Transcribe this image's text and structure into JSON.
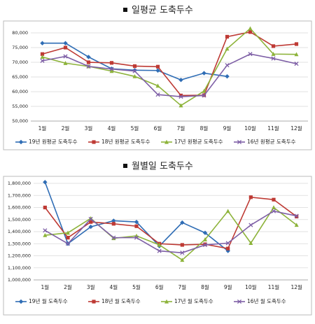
{
  "chart_data": [
    {
      "type": "line",
      "title": "일평균 도축두수",
      "categories": [
        "1월",
        "2월",
        "3월",
        "4월",
        "5월",
        "6월",
        "7월",
        "8월",
        "9월",
        "10월",
        "11월",
        "12월"
      ],
      "series": [
        {
          "name": "19년 원평균 도축두수",
          "color": "#2f6db5",
          "marker": "diamond",
          "values": [
            76500,
            76500,
            71800,
            67800,
            67300,
            67200,
            64000,
            66300,
            65200,
            null,
            null,
            null
          ]
        },
        {
          "name": "18년 원평균 도축두수",
          "color": "#be3a34",
          "marker": "square",
          "values": [
            72800,
            75000,
            70000,
            69800,
            68700,
            68500,
            58700,
            58800,
            78700,
            80300,
            75500,
            76200
          ]
        },
        {
          "name": "17년 원평균 도축두수",
          "color": "#8db33a",
          "marker": "triangle",
          "values": [
            71800,
            69700,
            68600,
            67000,
            65200,
            62000,
            55300,
            60200,
            74600,
            81500,
            72800,
            72700
          ]
        },
        {
          "name": "16년 원평균 도축두수",
          "color": "#7e5fa6",
          "marker": "x",
          "values": [
            70500,
            72000,
            68600,
            67700,
            67000,
            59000,
            58300,
            58700,
            69000,
            72800,
            71300,
            69500
          ]
        }
      ],
      "ylim": [
        50000,
        80000
      ],
      "yticks": [
        {
          "value": 50000,
          "label": "50,000"
        },
        {
          "value": 55000,
          "label": "55,000"
        },
        {
          "value": 60000,
          "label": "60,000"
        },
        {
          "value": 65000,
          "label": "65,000"
        },
        {
          "value": 70000,
          "label": "70,000"
        },
        {
          "value": 75000,
          "label": "75,000"
        },
        {
          "value": 80000,
          "label": "80,000"
        }
      ],
      "grid": true,
      "legend": "bottom"
    },
    {
      "type": "line",
      "title": "월별일 도축두수",
      "categories": [
        "1월",
        "2월",
        "3월",
        "4월",
        "5월",
        "6월",
        "7월",
        "8월",
        "9월",
        "10월",
        "11월",
        "12월"
      ],
      "series": [
        {
          "name": "19년 월 도축두수",
          "color": "#2f6db5",
          "marker": "diamond",
          "values": [
            1810000,
            1300000,
            1440000,
            1490000,
            1480000,
            1280000,
            1475000,
            1390000,
            1240000,
            null,
            null,
            null
          ]
        },
        {
          "name": "18년 월 도축두수",
          "color": "#be3a34",
          "marker": "square",
          "values": [
            1600000,
            1350000,
            1480000,
            1465000,
            1445000,
            1300000,
            1290000,
            1295000,
            1260000,
            1685000,
            1665000,
            1525000
          ]
        },
        {
          "name": "17년 월 도축두수",
          "color": "#8db33a",
          "marker": "triangle",
          "values": [
            1370000,
            1390000,
            1510000,
            1345000,
            1365000,
            1290000,
            1165000,
            1335000,
            1570000,
            1305000,
            1600000,
            1455000
          ]
        },
        {
          "name": "16년 월 도축두수",
          "color": "#7e5fa6",
          "marker": "x",
          "values": [
            1410000,
            1300000,
            1505000,
            1350000,
            1350000,
            1240000,
            1225000,
            1290000,
            1305000,
            1455000,
            1570000,
            1530000
          ]
        }
      ],
      "ylim": [
        1000000,
        1800000
      ],
      "yticks": [
        {
          "value": 1000000,
          "label": "1,000,000"
        },
        {
          "value": 1100000,
          "label": "1,100,000"
        },
        {
          "value": 1200000,
          "label": "1,200,000"
        },
        {
          "value": 1300000,
          "label": "1,300,000"
        },
        {
          "value": 1400000,
          "label": "1,400,000"
        },
        {
          "value": 1500000,
          "label": "1,500,000"
        },
        {
          "value": 1600000,
          "label": "1,600,000"
        },
        {
          "value": 1700000,
          "label": "1,700,000"
        },
        {
          "value": 1800000,
          "label": "1,800,000"
        }
      ],
      "grid": true,
      "legend": "bottom"
    }
  ]
}
